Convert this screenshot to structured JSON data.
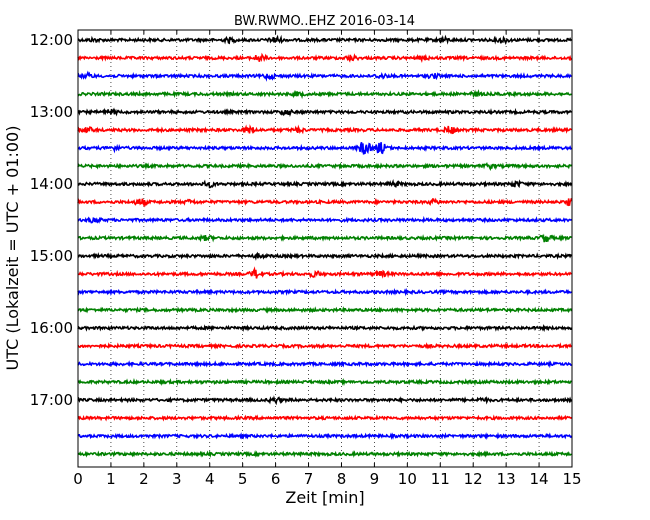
{
  "chart_data": {
    "type": "line",
    "title": "BW.RWMO..EHZ 2016-03-14",
    "xlabel": "Zeit  [min]",
    "ylabel": "UTC (Lokalzeit = UTC + 01:00)",
    "xlim": [
      0,
      15
    ],
    "x_ticks": [
      "0",
      "1",
      "2",
      "3",
      "4",
      "5",
      "6",
      "7",
      "8",
      "9",
      "10",
      "11",
      "12",
      "13",
      "14",
      "15"
    ],
    "y_ticks": [
      "12:00",
      "13:00",
      "14:00",
      "15:00",
      "16:00",
      "17:00"
    ],
    "grid": "vertical dotted at each minute",
    "trace_colors": [
      "#000000",
      "#ff0000",
      "#0000ff",
      "#008000"
    ],
    "traces": [
      {
        "start": "12:00",
        "events": [
          [
            0.5,
            0.3
          ],
          [
            4.6,
            0.5
          ],
          [
            6.0,
            0.8
          ],
          [
            11.1,
            0.5
          ],
          [
            12.9,
            0.7
          ]
        ]
      },
      {
        "start": "12:15",
        "events": [
          [
            5.5,
            0.8
          ],
          [
            8.3,
            0.6
          ],
          [
            10.5,
            0.4
          ]
        ]
      },
      {
        "start": "12:30",
        "events": [
          [
            0.3,
            0.5
          ],
          [
            5.8,
            0.7
          ],
          [
            9.2,
            0.5
          ],
          [
            10.8,
            0.5
          ]
        ]
      },
      {
        "start": "12:45",
        "events": [
          [
            6.7,
            0.4
          ],
          [
            12.1,
            0.4
          ]
        ]
      },
      {
        "start": "13:00",
        "events": [
          [
            1.0,
            0.5
          ],
          [
            6.3,
            0.6
          ]
        ]
      },
      {
        "start": "13:15",
        "events": [
          [
            0.3,
            0.6
          ],
          [
            5.2,
            0.8
          ],
          [
            6.7,
            0.5
          ],
          [
            11.3,
            0.9
          ]
        ]
      },
      {
        "start": "13:30",
        "events": [
          [
            1.1,
            0.4
          ],
          [
            8.7,
            1.8
          ],
          [
            9.2,
            1.4
          ]
        ]
      },
      {
        "start": "13:45",
        "events": [
          [
            12.5,
            0.5
          ]
        ]
      },
      {
        "start": "14:00",
        "events": [
          [
            4.0,
            0.6
          ],
          [
            9.6,
            0.5
          ],
          [
            13.3,
            0.6
          ]
        ]
      },
      {
        "start": "14:15",
        "events": [
          [
            1.9,
            0.8
          ],
          [
            3.4,
            0.4
          ],
          [
            10.8,
            0.5
          ],
          [
            15.0,
            1.0
          ]
        ]
      },
      {
        "start": "14:30",
        "events": [
          [
            0.5,
            0.6
          ]
        ]
      },
      {
        "start": "14:45",
        "events": [
          [
            3.9,
            0.5
          ],
          [
            14.2,
            0.9
          ]
        ]
      },
      {
        "start": "15:00",
        "events": [
          [
            5.5,
            0.4
          ]
        ]
      },
      {
        "start": "15:15",
        "events": [
          [
            5.4,
            1.1
          ],
          [
            7.2,
            0.6
          ],
          [
            9.2,
            0.6
          ]
        ]
      },
      {
        "start": "15:30",
        "events": []
      },
      {
        "start": "15:45",
        "events": []
      },
      {
        "start": "16:00",
        "events": []
      },
      {
        "start": "16:15",
        "events": []
      },
      {
        "start": "16:30",
        "events": []
      },
      {
        "start": "16:45",
        "events": []
      },
      {
        "start": "17:00",
        "events": [
          [
            6.0,
            0.6
          ],
          [
            12.3,
            0.4
          ]
        ]
      },
      {
        "start": "17:15",
        "events": []
      },
      {
        "start": "17:30",
        "events": []
      },
      {
        "start": "17:45",
        "events": []
      }
    ]
  }
}
